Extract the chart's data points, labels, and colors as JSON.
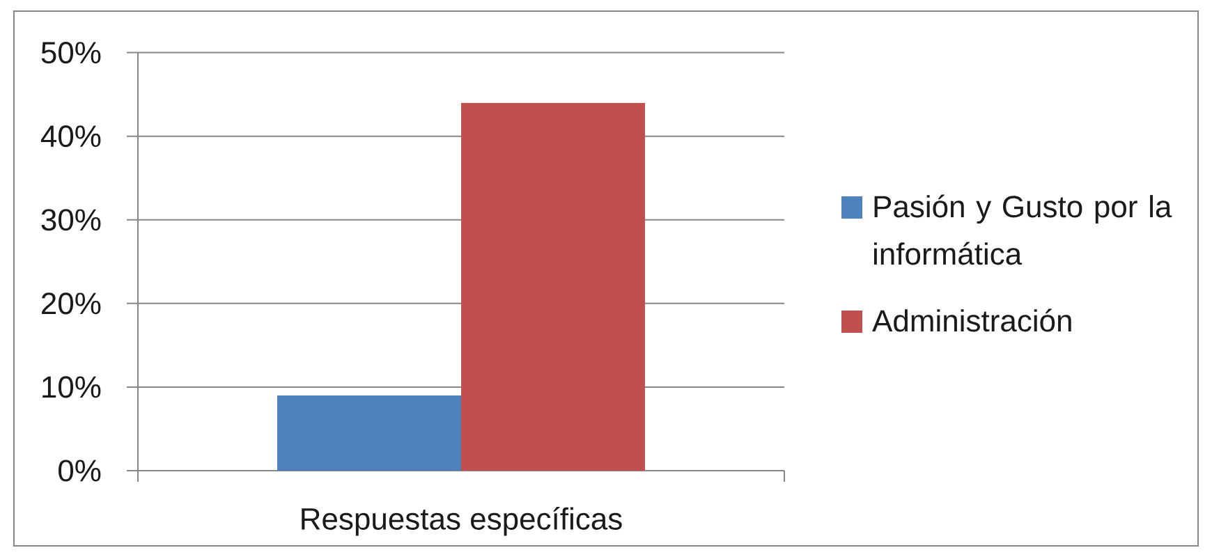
{
  "chart_data": {
    "type": "bar",
    "categories": [
      "Respuestas específicas"
    ],
    "series": [
      {
        "name": "Pasión y Gusto por la informática",
        "color": "#4f81bd",
        "values": [
          9
        ]
      },
      {
        "name": "Administración",
        "color": "#c0504d",
        "values": [
          44
        ]
      }
    ],
    "ylim": [
      0,
      50
    ],
    "yticks": [
      {
        "value": 0,
        "label": "0%"
      },
      {
        "value": 10,
        "label": "10%"
      },
      {
        "value": 20,
        "label": "20%"
      },
      {
        "value": 30,
        "label": "30%"
      },
      {
        "value": 40,
        "label": "40%"
      },
      {
        "value": 50,
        "label": "50%"
      }
    ],
    "grid": "y",
    "legend": "right"
  }
}
